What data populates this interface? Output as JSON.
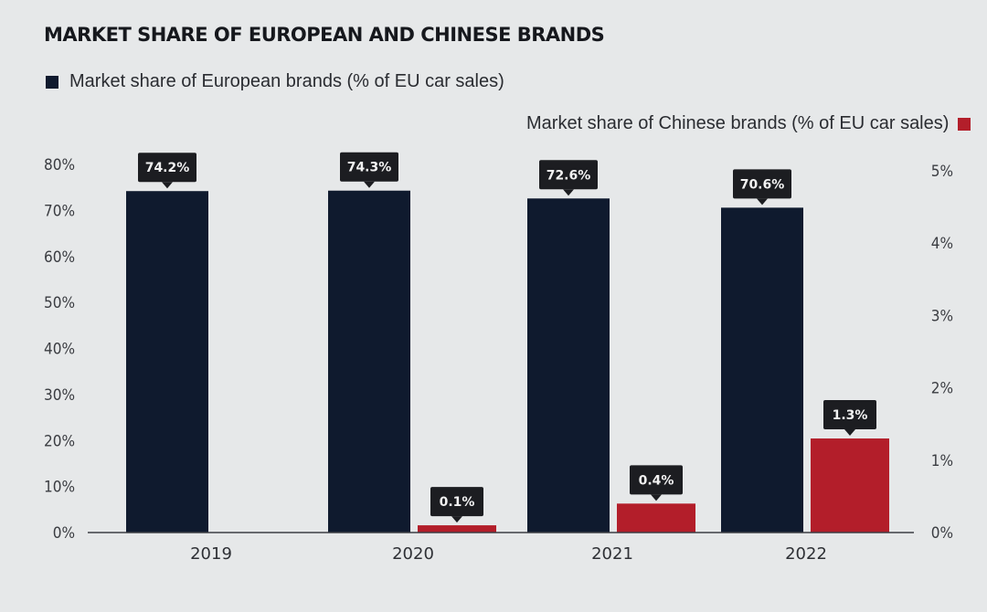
{
  "chart_data": {
    "type": "bar",
    "title": "MARKET SHARE OF EUROPEAN AND CHINESE BRANDS",
    "categories": [
      "2019",
      "2020",
      "2021",
      "2022"
    ],
    "series": [
      {
        "name": "Market share of European brands (% of EU car sales)",
        "values": [
          74.2,
          74.3,
          72.6,
          70.6
        ],
        "labels": [
          "74.2%",
          "74.3%",
          "72.6%",
          "70.6%"
        ],
        "axis": "left",
        "color": "#0f1a2e"
      },
      {
        "name": "Market share of Chinese brands (% of EU car sales)",
        "values": [
          null,
          0.1,
          0.4,
          1.3
        ],
        "labels": [
          "",
          "0.1%",
          "0.4%",
          "1.3%"
        ],
        "axis": "right",
        "color": "#b31e2a"
      }
    ],
    "y_left": {
      "ylim": [
        0,
        80
      ],
      "ticks": [
        0,
        10,
        20,
        30,
        40,
        50,
        60,
        70,
        80
      ],
      "tick_labels": [
        "0%",
        "10%",
        "20%",
        "30%",
        "40%",
        "50%",
        "60%",
        "70%",
        "80%"
      ]
    },
    "y_right": {
      "ylim": [
        0,
        5
      ],
      "ticks": [
        0,
        1,
        2,
        3,
        4,
        5
      ],
      "tick_labels": [
        "0%",
        "1%",
        "2%",
        "3%",
        "4%",
        "5%"
      ]
    },
    "grid": false,
    "legend": "top"
  }
}
